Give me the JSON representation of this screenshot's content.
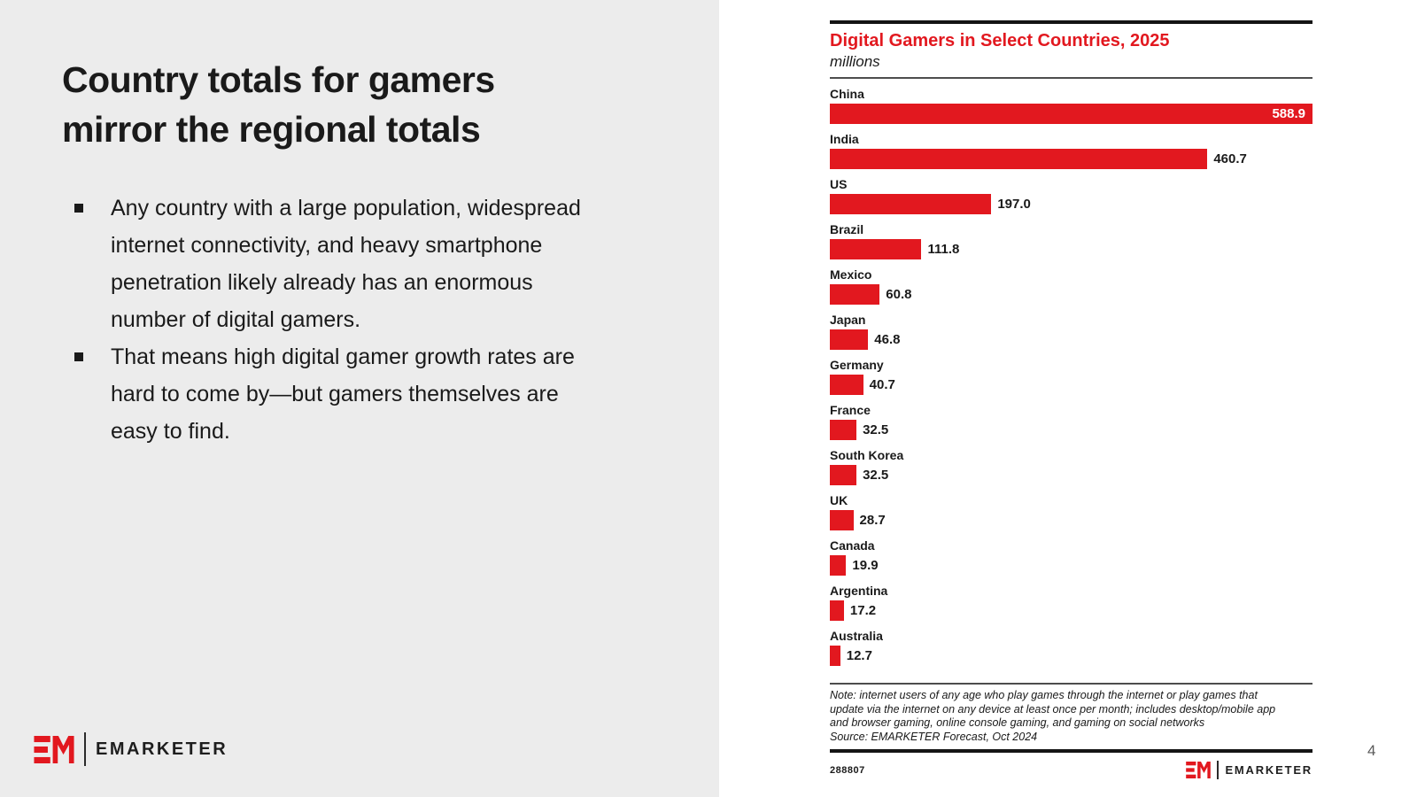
{
  "slide": {
    "title_lines": [
      "Country totals for gamers",
      "mirror the regional totals"
    ],
    "bullets": [
      "Any country with a large population, widespread internet connectivity, and heavy smartphone penetration likely already has an enormous number of digital gamers.",
      "That means high digital gamer growth rates are hard to come by—but gamers themselves are easy to find."
    ],
    "brand": "EMARKETER",
    "page_number": "4"
  },
  "chart_data": {
    "type": "bar",
    "orientation": "horizontal",
    "title": "Digital Gamers in Select Countries, 2025",
    "subtitle": "millions",
    "categories": [
      "China",
      "India",
      "US",
      "Brazil",
      "Mexico",
      "Japan",
      "Germany",
      "France",
      "South Korea",
      "UK",
      "Canada",
      "Argentina",
      "Australia"
    ],
    "values": [
      588.9,
      460.7,
      197.0,
      111.8,
      60.8,
      46.8,
      40.7,
      32.5,
      32.5,
      28.7,
      19.9,
      17.2,
      12.7
    ],
    "value_labels": [
      "588.9",
      "460.7",
      "197.0",
      "111.8",
      "60.8",
      "46.8",
      "40.7",
      "32.5",
      "32.5",
      "28.7",
      "19.9",
      "17.2",
      "12.7"
    ],
    "xlim": [
      0,
      588.9
    ],
    "grid": false,
    "legend": false,
    "bar_color": "#e2181f",
    "note_lines": [
      "Note: internet users of any age who play games through the internet or play games that",
      "update via the internet on any device at least once per month; includes desktop/mobile app",
      "and browser gaming, online console gaming, and gaming on social networks"
    ],
    "source": "Source: EMARKETER Forecast, Oct 2024",
    "chart_id": "288807",
    "brand": "EMARKETER"
  },
  "colors": {
    "accent_red": "#e2181f",
    "panel_gray": "#ececec",
    "text_black": "#1a1a1a",
    "page_number_gray": "#595959"
  }
}
